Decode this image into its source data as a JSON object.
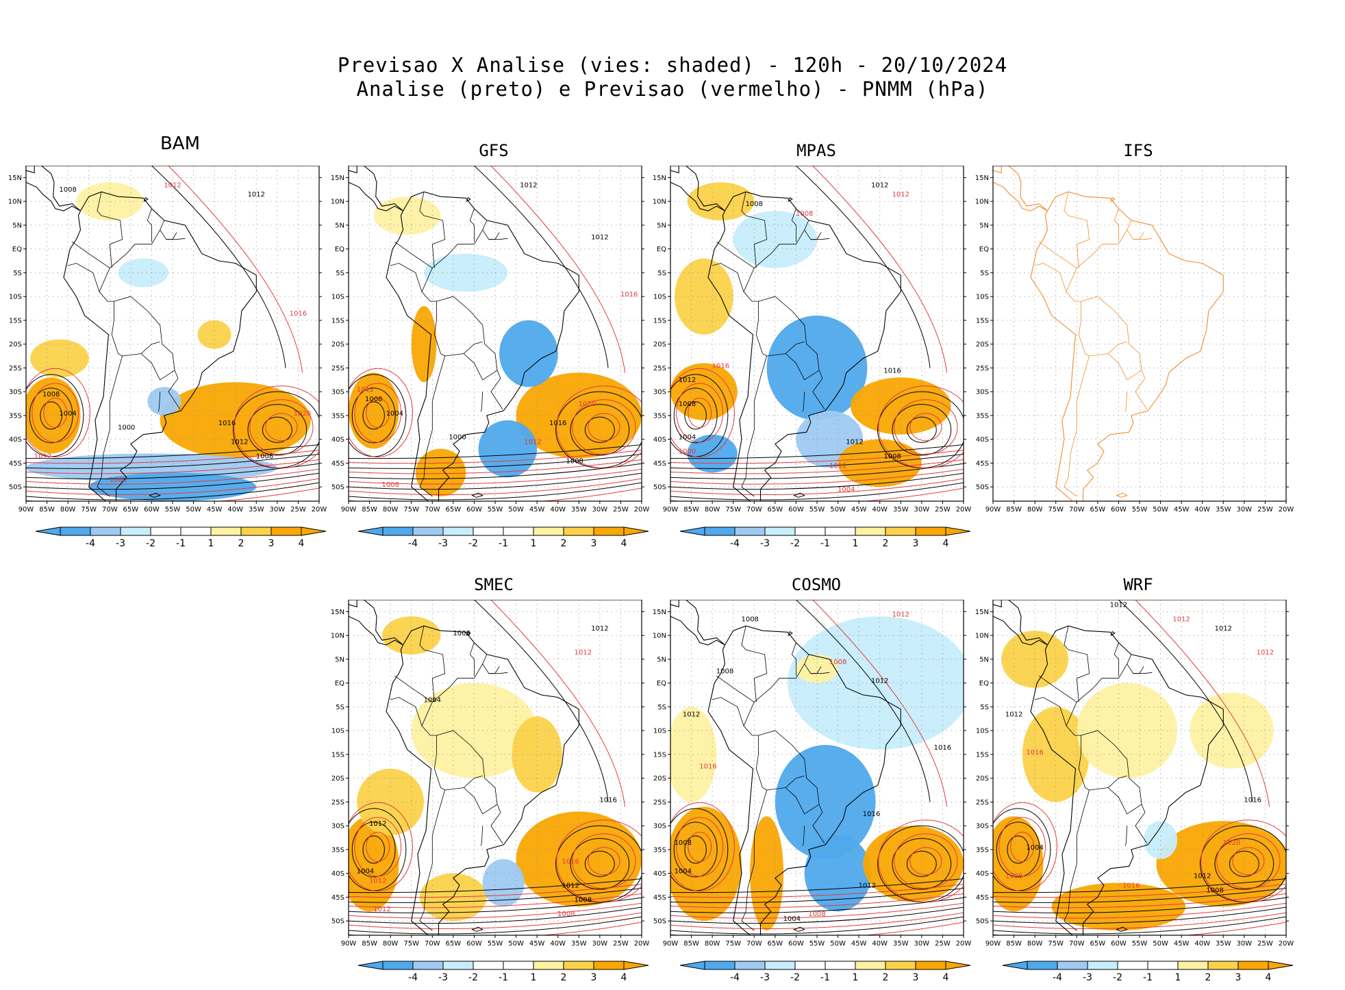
{
  "figure": {
    "title_line1": "Previsao X Analise (vies: shaded) - 120h - 20/10/2024",
    "title_line2": "Analise (preto) e Previsao (vermelho) - PNMM (hPa)"
  },
  "colors": {
    "neg4": "#4fa9ec",
    "neg3": "#9fcaf2",
    "neg2": "#c7edfb",
    "pos2": "#fdf1a2",
    "pos3": "#fbd24a",
    "pos4": "#f9a702",
    "analysis": "#000000",
    "forecast": "#e4393b",
    "coast_ifs": "#f28c28"
  },
  "map_axes": {
    "lat_labels": [
      "15N",
      "10N",
      "5N",
      "EQ",
      "5S",
      "10S",
      "15S",
      "20S",
      "25S",
      "30S",
      "35S",
      "40S",
      "45S",
      "50S"
    ],
    "lon_labels": [
      "90W",
      "85W",
      "80W",
      "75W",
      "70W",
      "65W",
      "60W",
      "55W",
      "50W",
      "45W",
      "40W",
      "35W",
      "30W",
      "25W",
      "20W"
    ]
  },
  "colorbar": {
    "labels": [
      "-4",
      "-3",
      "-2",
      "-1",
      "1",
      "2",
      "3",
      "4"
    ]
  },
  "panels": [
    {
      "name": "BAM",
      "has_data": true,
      "blobs": [
        {
          "lon": -40,
          "lat": -36,
          "rx": 18,
          "ry": 8,
          "level": "pos4"
        },
        {
          "lon": -84,
          "lat": -35,
          "rx": 7,
          "ry": 8,
          "level": "pos4"
        },
        {
          "lon": -60,
          "lat": -46,
          "rx": 30,
          "ry": 3,
          "level": "neg3"
        },
        {
          "lon": -55,
          "lat": -50,
          "rx": 20,
          "ry": 3,
          "level": "neg4"
        },
        {
          "lon": -82,
          "lat": -23,
          "rx": 7,
          "ry": 4,
          "level": "pos3"
        },
        {
          "lon": -70,
          "lat": 10,
          "rx": 8,
          "ry": 4,
          "level": "pos2"
        },
        {
          "lon": -45,
          "lat": -18,
          "rx": 4,
          "ry": 3,
          "level": "pos3"
        },
        {
          "lon": -62,
          "lat": -5,
          "rx": 6,
          "ry": 3,
          "level": "neg2"
        },
        {
          "lon": -57,
          "lat": -32,
          "rx": 4,
          "ry": 3,
          "level": "neg3"
        }
      ],
      "contour_labels": [
        {
          "text": "1012",
          "lon": -55,
          "lat": 13,
          "color": "forecast"
        },
        {
          "text": "1012",
          "lon": -35,
          "lat": 11,
          "color": "analysis"
        },
        {
          "text": "1008",
          "lon": -80,
          "lat": 12,
          "color": "analysis"
        },
        {
          "text": "1016",
          "lon": -25,
          "lat": -14,
          "color": "forecast"
        },
        {
          "text": "1008",
          "lon": -84,
          "lat": -31,
          "color": "analysis"
        },
        {
          "text": "1004",
          "lon": -80,
          "lat": -35,
          "color": "analysis"
        },
        {
          "text": "1016",
          "lon": -42,
          "lat": -37,
          "color": "analysis"
        },
        {
          "text": "1012",
          "lon": -39,
          "lat": -41,
          "color": "analysis"
        },
        {
          "text": "1008",
          "lon": -33,
          "lat": -44,
          "color": "analysis"
        },
        {
          "text": "1000",
          "lon": -66,
          "lat": -38,
          "color": "analysis"
        },
        {
          "text": "1012",
          "lon": -86,
          "lat": -44,
          "color": "forecast"
        },
        {
          "text": "1000",
          "lon": -68,
          "lat": -49,
          "color": "forecast"
        },
        {
          "text": "1020",
          "lon": -24,
          "lat": -35,
          "color": "forecast"
        }
      ]
    },
    {
      "name": "GFS",
      "has_data": true,
      "blobs": [
        {
          "lon": -35,
          "lat": -35,
          "rx": 15,
          "ry": 9,
          "level": "pos4"
        },
        {
          "lon": -84,
          "lat": -34,
          "rx": 6,
          "ry": 8,
          "level": "pos4"
        },
        {
          "lon": -47,
          "lat": -22,
          "rx": 7,
          "ry": 7,
          "level": "neg4"
        },
        {
          "lon": -52,
          "lat": -42,
          "rx": 7,
          "ry": 6,
          "level": "neg4"
        },
        {
          "lon": -68,
          "lat": -47,
          "rx": 6,
          "ry": 5,
          "level": "pos4"
        },
        {
          "lon": -62,
          "lat": -5,
          "rx": 10,
          "ry": 4,
          "level": "neg2"
        },
        {
          "lon": -72,
          "lat": -20,
          "rx": 3,
          "ry": 8,
          "level": "pos4"
        },
        {
          "lon": -76,
          "lat": 7,
          "rx": 8,
          "ry": 4,
          "level": "pos2"
        }
      ],
      "contour_labels": [
        {
          "text": "1012",
          "lon": -47,
          "lat": 13,
          "color": "analysis"
        },
        {
          "text": "1012",
          "lon": -30,
          "lat": 2,
          "color": "analysis"
        },
        {
          "text": "1016",
          "lon": -23,
          "lat": -10,
          "color": "forecast"
        },
        {
          "text": "1008",
          "lon": -84,
          "lat": -32,
          "color": "analysis"
        },
        {
          "text": "1004",
          "lon": -79,
          "lat": -35,
          "color": "analysis"
        },
        {
          "text": "1012",
          "lon": -86,
          "lat": -30,
          "color": "forecast"
        },
        {
          "text": "1016",
          "lon": -40,
          "lat": -37,
          "color": "analysis"
        },
        {
          "text": "1012",
          "lon": -46,
          "lat": -41,
          "color": "forecast"
        },
        {
          "text": "1008",
          "lon": -36,
          "lat": -45,
          "color": "analysis"
        },
        {
          "text": "1020",
          "lon": -33,
          "lat": -33,
          "color": "forecast"
        },
        {
          "text": "1000",
          "lon": -64,
          "lat": -40,
          "color": "analysis"
        },
        {
          "text": "1008",
          "lon": -80,
          "lat": -50,
          "color": "forecast"
        }
      ]
    },
    {
      "name": "MPAS",
      "has_data": true,
      "blobs": [
        {
          "lon": -55,
          "lat": -25,
          "rx": 12,
          "ry": 11,
          "level": "neg4"
        },
        {
          "lon": -52,
          "lat": -40,
          "rx": 8,
          "ry": 6,
          "level": "neg3"
        },
        {
          "lon": -82,
          "lat": -30,
          "rx": 8,
          "ry": 6,
          "level": "pos4"
        },
        {
          "lon": -35,
          "lat": -33,
          "rx": 12,
          "ry": 6,
          "level": "pos4"
        },
        {
          "lon": -80,
          "lat": -43,
          "rx": 6,
          "ry": 4,
          "level": "neg4"
        },
        {
          "lon": -40,
          "lat": -45,
          "rx": 10,
          "ry": 5,
          "level": "pos4"
        },
        {
          "lon": -82,
          "lat": -10,
          "rx": 7,
          "ry": 8,
          "level": "pos3"
        },
        {
          "lon": -78,
          "lat": 10,
          "rx": 8,
          "ry": 4,
          "level": "pos3"
        },
        {
          "lon": -65,
          "lat": 2,
          "rx": 10,
          "ry": 6,
          "level": "neg2"
        }
      ],
      "contour_labels": [
        {
          "text": "1012",
          "lon": -40,
          "lat": 13,
          "color": "analysis"
        },
        {
          "text": "1008",
          "lon": -70,
          "lat": 9,
          "color": "analysis"
        },
        {
          "text": "1008",
          "lon": -58,
          "lat": 7,
          "color": "forecast"
        },
        {
          "text": "1012",
          "lon": -35,
          "lat": 11,
          "color": "forecast"
        },
        {
          "text": "1016",
          "lon": -78,
          "lat": -25,
          "color": "forecast"
        },
        {
          "text": "1012",
          "lon": -86,
          "lat": -28,
          "color": "analysis"
        },
        {
          "text": "1008",
          "lon": -86,
          "lat": -33,
          "color": "analysis"
        },
        {
          "text": "1004",
          "lon": -86,
          "lat": -40,
          "color": "analysis"
        },
        {
          "text": "1000",
          "lon": -86,
          "lat": -43,
          "color": "forecast"
        },
        {
          "text": "1016",
          "lon": -37,
          "lat": -26,
          "color": "analysis"
        },
        {
          "text": "1012",
          "lon": -46,
          "lat": -41,
          "color": "analysis"
        },
        {
          "text": "1008",
          "lon": -37,
          "lat": -44,
          "color": "analysis"
        },
        {
          "text": "1004",
          "lon": -48,
          "lat": -51,
          "color": "forecast"
        },
        {
          "text": "1012",
          "lon": -50,
          "lat": -46,
          "color": "forecast"
        }
      ]
    },
    {
      "name": "IFS",
      "has_data": false,
      "blobs": [],
      "contour_labels": []
    },
    {
      "name": "SMEC",
      "has_data": true,
      "blobs": [
        {
          "lon": -35,
          "lat": -37,
          "rx": 15,
          "ry": 10,
          "level": "pos4"
        },
        {
          "lon": -85,
          "lat": -38,
          "rx": 7,
          "ry": 10,
          "level": "pos4"
        },
        {
          "lon": -65,
          "lat": -45,
          "rx": 8,
          "ry": 5,
          "level": "pos3"
        },
        {
          "lon": -80,
          "lat": -25,
          "rx": 8,
          "ry": 7,
          "level": "pos3"
        },
        {
          "lon": -60,
          "lat": -10,
          "rx": 15,
          "ry": 10,
          "level": "pos2"
        },
        {
          "lon": -53,
          "lat": -42,
          "rx": 5,
          "ry": 5,
          "level": "neg3"
        },
        {
          "lon": -45,
          "lat": -15,
          "rx": 6,
          "ry": 8,
          "level": "pos3"
        },
        {
          "lon": -75,
          "lat": 10,
          "rx": 7,
          "ry": 4,
          "level": "pos3"
        }
      ],
      "contour_labels": [
        {
          "text": "1012",
          "lon": -30,
          "lat": 11,
          "color": "analysis"
        },
        {
          "text": "1012",
          "lon": -34,
          "lat": 6,
          "color": "forecast"
        },
        {
          "text": "1008",
          "lon": -63,
          "lat": 10,
          "color": "analysis"
        },
        {
          "text": "1004",
          "lon": -70,
          "lat": -4,
          "color": "analysis"
        },
        {
          "text": "1016",
          "lon": -28,
          "lat": -25,
          "color": "analysis"
        },
        {
          "text": "1012",
          "lon": -83,
          "lat": -30,
          "color": "analysis"
        },
        {
          "text": "1004",
          "lon": -86,
          "lat": -40,
          "color": "analysis"
        },
        {
          "text": "1012",
          "lon": -83,
          "lat": -42,
          "color": "forecast"
        },
        {
          "text": "1016",
          "lon": -37,
          "lat": -38,
          "color": "forecast"
        },
        {
          "text": "1012",
          "lon": -37,
          "lat": -43,
          "color": "analysis"
        },
        {
          "text": "1008",
          "lon": -34,
          "lat": -46,
          "color": "analysis"
        },
        {
          "text": "1008",
          "lon": -38,
          "lat": -49,
          "color": "forecast"
        },
        {
          "text": "1012",
          "lon": -82,
          "lat": -48,
          "color": "forecast"
        }
      ]
    },
    {
      "name": "COSMO",
      "has_data": true,
      "blobs": [
        {
          "lon": -40,
          "lat": 0,
          "rx": 22,
          "ry": 14,
          "level": "neg2"
        },
        {
          "lon": -53,
          "lat": -25,
          "rx": 12,
          "ry": 12,
          "level": "neg4"
        },
        {
          "lon": -50,
          "lat": -40,
          "rx": 8,
          "ry": 8,
          "level": "neg4"
        },
        {
          "lon": -82,
          "lat": -38,
          "rx": 9,
          "ry": 12,
          "level": "pos4"
        },
        {
          "lon": -67,
          "lat": -40,
          "rx": 4,
          "ry": 12,
          "level": "pos4"
        },
        {
          "lon": -32,
          "lat": -38,
          "rx": 12,
          "ry": 8,
          "level": "pos4"
        },
        {
          "lon": -85,
          "lat": -15,
          "rx": 6,
          "ry": 10,
          "level": "pos2"
        },
        {
          "lon": -55,
          "lat": 3,
          "rx": 5,
          "ry": 3,
          "level": "pos2"
        }
      ],
      "contour_labels": [
        {
          "text": "1008",
          "lon": -71,
          "lat": 13,
          "color": "analysis"
        },
        {
          "text": "1012",
          "lon": -35,
          "lat": 14,
          "color": "forecast"
        },
        {
          "text": "1008",
          "lon": -77,
          "lat": 2,
          "color": "analysis"
        },
        {
          "text": "1008",
          "lon": -50,
          "lat": 4,
          "color": "forecast"
        },
        {
          "text": "1012",
          "lon": -40,
          "lat": 0,
          "color": "analysis"
        },
        {
          "text": "1016",
          "lon": -25,
          "lat": -14,
          "color": "analysis"
        },
        {
          "text": "1012",
          "lon": -85,
          "lat": -7,
          "color": "analysis"
        },
        {
          "text": "1016",
          "lon": -81,
          "lat": -18,
          "color": "forecast"
        },
        {
          "text": "1008",
          "lon": -87,
          "lat": -34,
          "color": "analysis"
        },
        {
          "text": "1004",
          "lon": -87,
          "lat": -40,
          "color": "analysis"
        },
        {
          "text": "1016",
          "lon": -42,
          "lat": -28,
          "color": "analysis"
        },
        {
          "text": "1012",
          "lon": -43,
          "lat": -43,
          "color": "analysis"
        },
        {
          "text": "1004",
          "lon": -61,
          "lat": -50,
          "color": "analysis"
        },
        {
          "text": "1008",
          "lon": -55,
          "lat": -49,
          "color": "forecast"
        }
      ]
    },
    {
      "name": "WRF",
      "has_data": true,
      "blobs": [
        {
          "lon": -35,
          "lat": -38,
          "rx": 16,
          "ry": 9,
          "level": "pos4"
        },
        {
          "lon": -85,
          "lat": -38,
          "rx": 7,
          "ry": 10,
          "level": "pos4"
        },
        {
          "lon": -60,
          "lat": -47,
          "rx": 16,
          "ry": 5,
          "level": "pos4"
        },
        {
          "lon": -75,
          "lat": -15,
          "rx": 8,
          "ry": 10,
          "level": "pos3"
        },
        {
          "lon": -80,
          "lat": 5,
          "rx": 8,
          "ry": 6,
          "level": "pos3"
        },
        {
          "lon": -58,
          "lat": -10,
          "rx": 12,
          "ry": 10,
          "level": "pos2"
        },
        {
          "lon": -33,
          "lat": -10,
          "rx": 10,
          "ry": 8,
          "level": "pos2"
        },
        {
          "lon": -50,
          "lat": -33,
          "rx": 4,
          "ry": 4,
          "level": "neg2"
        }
      ],
      "contour_labels": [
        {
          "text": "1012",
          "lon": -60,
          "lat": 16,
          "color": "analysis"
        },
        {
          "text": "1012",
          "lon": -45,
          "lat": 13,
          "color": "forecast"
        },
        {
          "text": "1012",
          "lon": -35,
          "lat": 11,
          "color": "analysis"
        },
        {
          "text": "1012",
          "lon": -25,
          "lat": 6,
          "color": "forecast"
        },
        {
          "text": "1012",
          "lon": -85,
          "lat": -7,
          "color": "analysis"
        },
        {
          "text": "1016",
          "lon": -80,
          "lat": -15,
          "color": "forecast"
        },
        {
          "text": "1016",
          "lon": -28,
          "lat": -25,
          "color": "analysis"
        },
        {
          "text": "1004",
          "lon": -80,
          "lat": -35,
          "color": "analysis"
        },
        {
          "text": "1008",
          "lon": -85,
          "lat": -41,
          "color": "forecast"
        },
        {
          "text": "1012",
          "lon": -40,
          "lat": -41,
          "color": "analysis"
        },
        {
          "text": "1008",
          "lon": -37,
          "lat": -44,
          "color": "analysis"
        },
        {
          "text": "1020",
          "lon": -33,
          "lat": -34,
          "color": "forecast"
        },
        {
          "text": "1016",
          "lon": -57,
          "lat": -43,
          "color": "forecast"
        }
      ]
    }
  ]
}
